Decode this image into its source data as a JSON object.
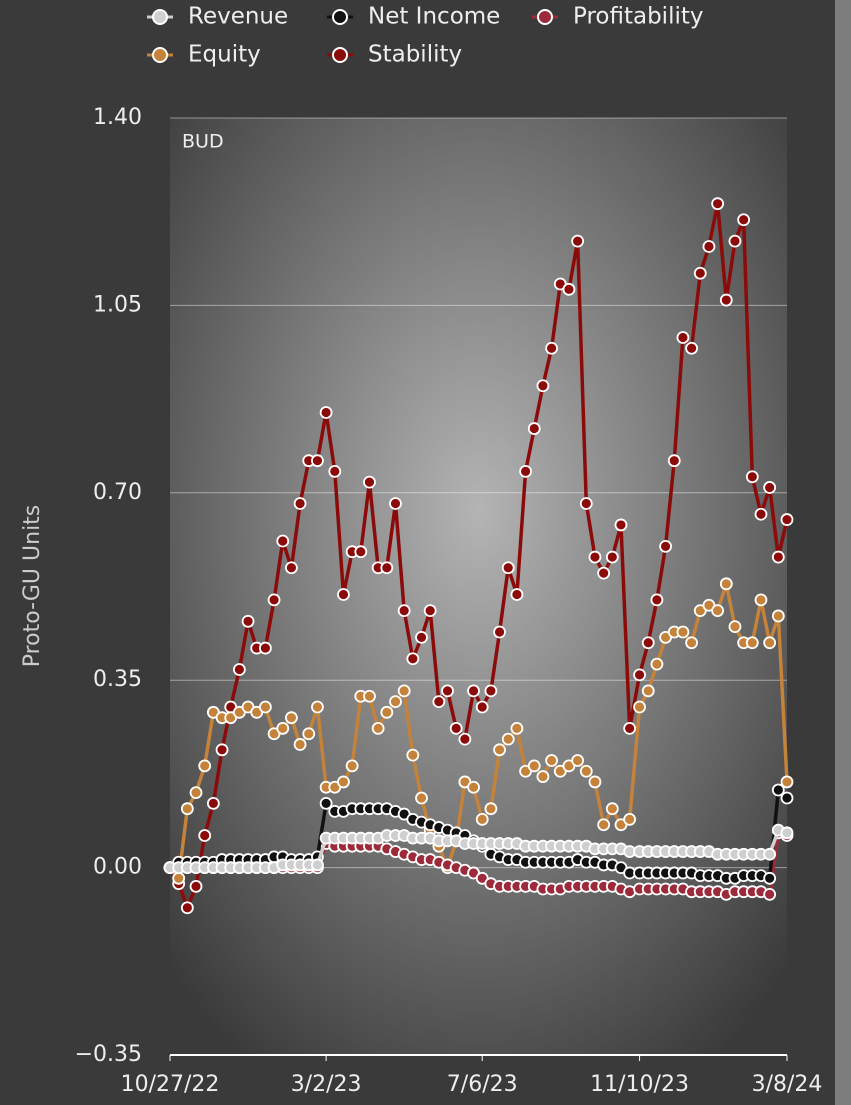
{
  "chart_data": {
    "type": "line",
    "ylabel": "Proto-GU Units",
    "annotation": "BUD",
    "legend": "top",
    "grid": true,
    "x": [
      "10/27/22",
      "11/3/22",
      "11/10/22",
      "11/17/22",
      "11/24/22",
      "12/1/22",
      "12/8/22",
      "12/15/22",
      "12/22/22",
      "12/29/22",
      "1/5/23",
      "1/12/23",
      "1/19/23",
      "1/26/23",
      "2/2/23",
      "2/9/23",
      "2/16/23",
      "2/23/23",
      "3/2/23",
      "3/9/23",
      "3/16/23",
      "3/23/23",
      "3/30/23",
      "4/6/23",
      "4/13/23",
      "4/20/23",
      "4/27/23",
      "5/4/23",
      "5/11/23",
      "5/18/23",
      "5/25/23",
      "6/1/23",
      "6/8/23",
      "6/15/23",
      "6/22/23",
      "6/29/23",
      "7/6/23",
      "7/13/23",
      "7/20/23",
      "7/27/23",
      "8/3/23",
      "8/10/23",
      "8/17/23",
      "8/24/23",
      "8/31/23",
      "9/7/23",
      "9/14/23",
      "9/21/23",
      "9/28/23",
      "10/5/23",
      "10/12/23",
      "10/19/23",
      "10/26/23",
      "11/2/23",
      "11/10/23",
      "11/17/23",
      "11/24/23",
      "12/1/23",
      "12/8/23",
      "12/15/23",
      "12/22/23",
      "12/29/23",
      "1/5/24",
      "1/12/24",
      "1/19/24",
      "1/26/24",
      "2/2/24",
      "2/9/24",
      "2/16/24",
      "2/23/24",
      "3/1/24",
      "3/8/24"
    ],
    "xlim": [
      "10/27/22",
      "3/8/24"
    ],
    "xticks": [
      "10/27/22",
      "3/2/23",
      "7/6/23",
      "11/10/23",
      "3/8/24"
    ],
    "ylim": [
      -0.35,
      1.4
    ],
    "yticks": [
      {
        "value": -0.35,
        "label": "−0.35"
      },
      {
        "value": 0,
        "label": "0.00"
      },
      {
        "value": 0.35,
        "label": "0.35"
      },
      {
        "value": 0.7,
        "label": "0.70"
      },
      {
        "value": 1.05,
        "label": "1.05"
      },
      {
        "value": 1.4,
        "label": "1.40"
      }
    ],
    "series": [
      {
        "name": "Revenue",
        "color": "#cfcfcf",
        "values": [
          0,
          0,
          0,
          0,
          0,
          0,
          0,
          0,
          0,
          0,
          0,
          0,
          0,
          0.005,
          0.005,
          0.005,
          0.005,
          0.005,
          0.055,
          0.055,
          0.055,
          0.055,
          0.055,
          0.055,
          0.055,
          0.06,
          0.06,
          0.06,
          0.055,
          0.055,
          0.055,
          0.05,
          0.05,
          0.05,
          0.045,
          0.045,
          0.045,
          0.045,
          0.045,
          0.045,
          0.045,
          0.04,
          0.04,
          0.04,
          0.04,
          0.04,
          0.04,
          0.04,
          0.04,
          0.035,
          0.035,
          0.035,
          0.035,
          0.03,
          0.03,
          0.03,
          0.03,
          0.03,
          0.03,
          0.03,
          0.03,
          0.03,
          0.03,
          0.025,
          0.025,
          0.025,
          0.025,
          0.025,
          0.025,
          0.025,
          0.07,
          0.065
        ]
      },
      {
        "name": "Net Income",
        "color": "#111111",
        "values": [
          0,
          0.01,
          0.01,
          0.01,
          0.01,
          0.01,
          0.015,
          0.015,
          0.015,
          0.015,
          0.015,
          0.015,
          0.02,
          0.02,
          0.015,
          0.015,
          0.015,
          0.02,
          0.12,
          0.105,
          0.105,
          0.11,
          0.11,
          0.11,
          0.11,
          0.11,
          0.105,
          0.1,
          0.09,
          0.085,
          0.08,
          0.075,
          0.07,
          0.065,
          0.06,
          0.05,
          0.04,
          0.025,
          0.02,
          0.015,
          0.015,
          0.01,
          0.01,
          0.01,
          0.01,
          0.01,
          0.01,
          0.015,
          0.01,
          0.01,
          0.005,
          0.005,
          0,
          -0.01,
          -0.01,
          -0.01,
          -0.01,
          -0.01,
          -0.01,
          -0.01,
          -0.01,
          -0.015,
          -0.015,
          -0.015,
          -0.02,
          -0.02,
          -0.015,
          -0.015,
          -0.015,
          -0.02,
          0.145,
          0.13
        ]
      },
      {
        "name": "Profitability",
        "color": "#9c2a3a",
        "values": [
          0,
          0,
          0,
          0,
          0,
          0,
          0,
          0,
          0,
          0,
          0,
          0,
          0,
          0,
          0,
          0,
          0,
          0,
          0.045,
          0.04,
          0.04,
          0.04,
          0.04,
          0.04,
          0.04,
          0.035,
          0.03,
          0.025,
          0.02,
          0.015,
          0.015,
          0.01,
          0.005,
          0,
          -0.005,
          -0.01,
          -0.02,
          -0.03,
          -0.035,
          -0.035,
          -0.035,
          -0.035,
          -0.035,
          -0.04,
          -0.04,
          -0.04,
          -0.035,
          -0.035,
          -0.035,
          -0.035,
          -0.035,
          -0.035,
          -0.04,
          -0.045,
          -0.04,
          -0.04,
          -0.04,
          -0.04,
          -0.04,
          -0.04,
          -0.045,
          -0.045,
          -0.045,
          -0.045,
          -0.05,
          -0.045,
          -0.045,
          -0.045,
          -0.045,
          -0.05,
          0.065,
          0.06
        ]
      },
      {
        "name": "Equity",
        "color": "#c4823a",
        "values": [
          0,
          -0.02,
          0.11,
          0.14,
          0.19,
          0.29,
          0.28,
          0.28,
          0.29,
          0.3,
          0.29,
          0.3,
          0.25,
          0.26,
          0.28,
          0.23,
          0.25,
          0.3,
          0.15,
          0.15,
          0.16,
          0.19,
          0.32,
          0.32,
          0.26,
          0.29,
          0.31,
          0.33,
          0.21,
          0.13,
          0.07,
          0.04,
          0,
          0.05,
          0.16,
          0.15,
          0.09,
          0.11,
          0.22,
          0.24,
          0.26,
          0.18,
          0.19,
          0.17,
          0.2,
          0.18,
          0.19,
          0.2,
          0.18,
          0.16,
          0.08,
          0.11,
          0.08,
          0.09,
          0.3,
          0.33,
          0.38,
          0.43,
          0.44,
          0.44,
          0.42,
          0.48,
          0.49,
          0.48,
          0.53,
          0.45,
          0.42,
          0.42,
          0.5,
          0.42,
          0.47,
          0.16
        ]
      },
      {
        "name": "Stability",
        "color": "#8b0b0b",
        "values": [
          0,
          -0.03,
          -0.075,
          -0.035,
          0.06,
          0.12,
          0.22,
          0.3,
          0.37,
          0.46,
          0.41,
          0.41,
          0.5,
          0.61,
          0.56,
          0.68,
          0.76,
          0.76,
          0.85,
          0.74,
          0.51,
          0.59,
          0.59,
          0.72,
          0.56,
          0.56,
          0.68,
          0.48,
          0.39,
          0.43,
          0.48,
          0.31,
          0.33,
          0.26,
          0.24,
          0.33,
          0.3,
          0.33,
          0.44,
          0.56,
          0.51,
          0.74,
          0.82,
          0.9,
          0.97,
          1.09,
          1.08,
          1.17,
          0.68,
          0.58,
          0.55,
          0.58,
          0.64,
          0.26,
          0.36,
          0.42,
          0.5,
          0.6,
          0.76,
          0.99,
          0.97,
          1.11,
          1.16,
          1.24,
          1.06,
          1.17,
          1.21,
          0.73,
          0.66,
          0.71,
          0.58,
          0.65
        ]
      }
    ]
  }
}
